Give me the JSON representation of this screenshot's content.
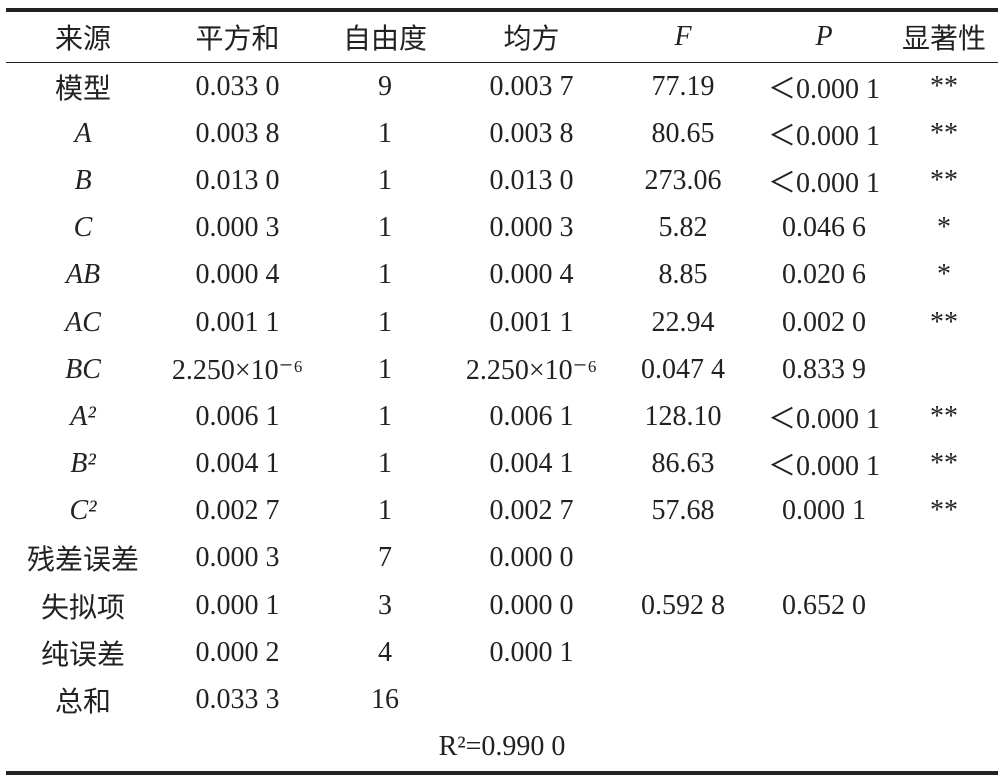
{
  "table": {
    "header": [
      "来源",
      "平方和",
      "自由度",
      "均方",
      "F",
      "P",
      "显著性"
    ],
    "rows": [
      [
        "模型",
        "0.033 0",
        "9",
        "0.003 7",
        "77.19",
        "＜0.000 1",
        "**"
      ],
      [
        "A",
        "0.003 8",
        "1",
        "0.003 8",
        "80.65",
        "＜0.000 1",
        "**"
      ],
      [
        "B",
        "0.013 0",
        "1",
        "0.013 0",
        "273.06",
        "＜0.000 1",
        "**"
      ],
      [
        "C",
        "0.000 3",
        "1",
        "0.000 3",
        "5.82",
        "0.046 6",
        "*"
      ],
      [
        "AB",
        "0.000 4",
        "1",
        "0.000 4",
        "8.85",
        "0.020 6",
        "*"
      ],
      [
        "AC",
        "0.001 1",
        "1",
        "0.001 1",
        "22.94",
        "0.002 0",
        "**"
      ],
      [
        "BC",
        "2.250×10⁻⁶",
        "1",
        "2.250×10⁻⁶",
        "0.047 4",
        "0.833 9",
        null
      ],
      [
        "A²",
        "0.006 1",
        "1",
        "0.006 1",
        "128.10",
        "＜0.000 1",
        "**"
      ],
      [
        "B²",
        "0.004 1",
        "1",
        "0.004 1",
        "86.63",
        "＜0.000 1",
        "**"
      ],
      [
        "C²",
        "0.002 7",
        "1",
        "0.002 7",
        "57.68",
        "0.000 1",
        "**"
      ],
      [
        "残差误差",
        "0.000 3",
        "7",
        "0.000 0",
        null,
        null,
        null
      ],
      [
        "失拟项",
        "0.000 1",
        "3",
        "0.000 0",
        "0.592 8",
        "0.652 0",
        null
      ],
      [
        "纯误差",
        "0.000 2",
        "4",
        "0.000 1",
        null,
        null,
        null
      ],
      [
        "总和",
        "0.033 3",
        "16",
        null,
        null,
        null,
        null
      ]
    ],
    "footer": "R²=0.990 0"
  }
}
